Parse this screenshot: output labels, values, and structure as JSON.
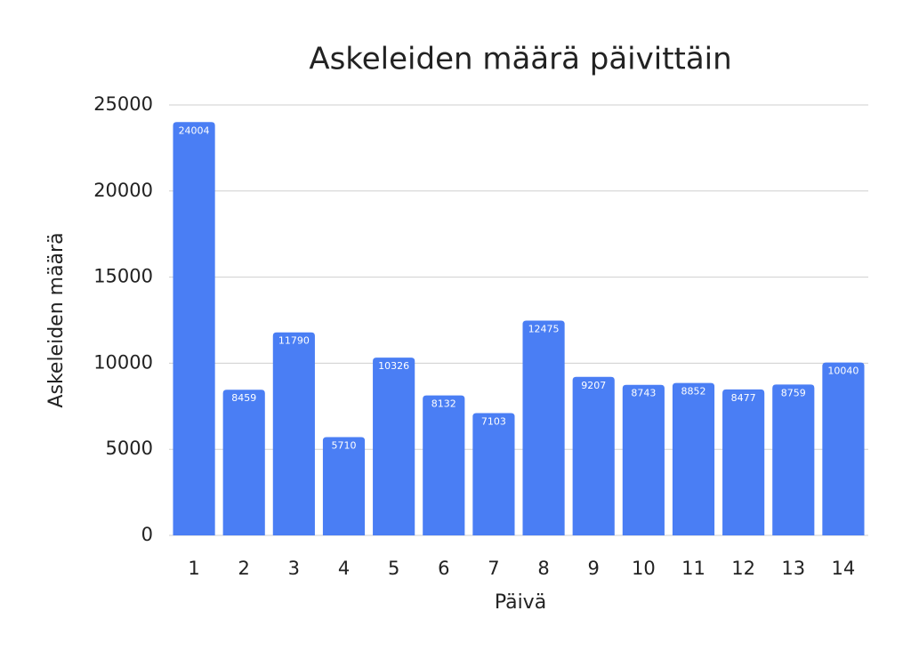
{
  "chart_data": {
    "type": "bar",
    "title": "Askeleiden määrä päivittäin",
    "x_label": "Päivä",
    "y_label": "Askeleiden määrä",
    "categories": [
      "1",
      "2",
      "3",
      "4",
      "5",
      "6",
      "7",
      "8",
      "9",
      "10",
      "11",
      "12",
      "13",
      "14"
    ],
    "values": [
      24004,
      8459,
      11790,
      5710,
      10326,
      8132,
      7103,
      12475,
      9207,
      8743,
      8852,
      8477,
      8759,
      10040
    ],
    "color": "#4a7ef4",
    "ylim": [
      0,
      25000
    ],
    "yticks": [
      0,
      5000,
      10000,
      15000,
      20000,
      25000
    ],
    "grid": true,
    "data_labels": true
  }
}
